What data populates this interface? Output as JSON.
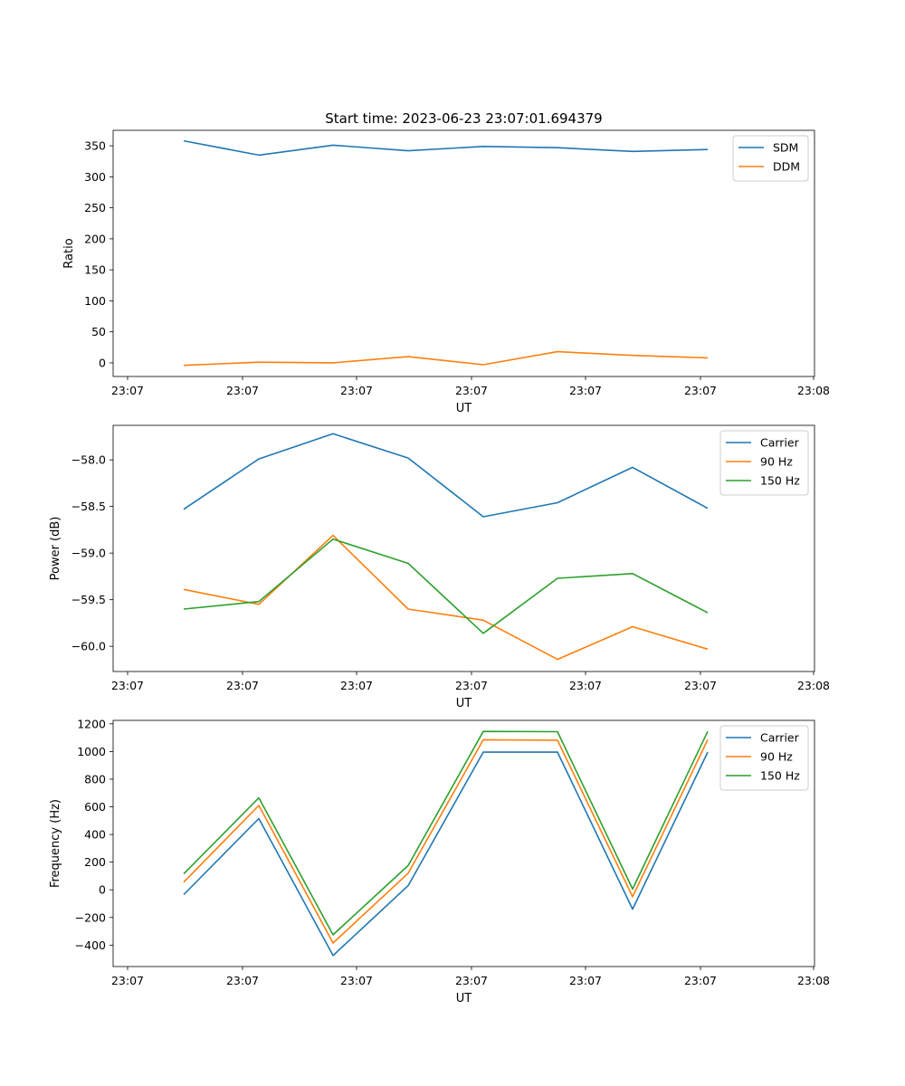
{
  "figure": {
    "title": "Start time: 2023-06-23 23:07:01.694379"
  },
  "chart_data": [
    {
      "type": "line",
      "xlabel": "UT",
      "ylabel": "Ratio",
      "xticks": [
        "23:07",
        "23:07",
        "23:07",
        "23:07",
        "23:07",
        "23:07",
        "23:08"
      ],
      "yticks": [
        0,
        50,
        100,
        150,
        200,
        250,
        300,
        350
      ],
      "ylim": [
        -22,
        375
      ],
      "legend": "top-right",
      "grid": false,
      "x": [
        1,
        2,
        3,
        4,
        5,
        6,
        7,
        8
      ],
      "series": [
        {
          "name": "SDM",
          "color": "#1f77b4",
          "values": [
            358,
            335,
            351,
            342,
            349,
            347,
            341,
            344
          ]
        },
        {
          "name": "DDM",
          "color": "#ff7f0e",
          "values": [
            -4,
            1,
            0,
            10,
            -3,
            18,
            12,
            8
          ]
        }
      ]
    },
    {
      "type": "line",
      "xlabel": "UT",
      "ylabel": "Power (dB)",
      "xticks": [
        "23:07",
        "23:07",
        "23:07",
        "23:07",
        "23:07",
        "23:07",
        "23:08"
      ],
      "yticks": [
        -58.0,
        -58.5,
        -59.0,
        -59.5,
        -60.0
      ],
      "ylim": [
        -60.27,
        -57.63
      ],
      "legend": "top-right",
      "grid": false,
      "x": [
        1,
        2,
        3,
        4,
        5,
        6,
        7,
        8
      ],
      "series": [
        {
          "name": "Carrier",
          "color": "#1f77b4",
          "values": [
            -58.53,
            -57.99,
            -57.72,
            -57.98,
            -58.61,
            -58.46,
            -58.08,
            -58.52
          ]
        },
        {
          "name": "90 Hz",
          "color": "#ff7f0e",
          "values": [
            -59.39,
            -59.55,
            -58.81,
            -59.6,
            -59.72,
            -60.14,
            -59.79,
            -60.03
          ]
        },
        {
          "name": "150 Hz",
          "color": "#2ca02c",
          "values": [
            -59.6,
            -59.52,
            -58.85,
            -59.11,
            -59.86,
            -59.27,
            -59.22,
            -59.64
          ]
        }
      ]
    },
    {
      "type": "line",
      "xlabel": "UT",
      "ylabel": "Frequency (Hz)",
      "xticks": [
        "23:07",
        "23:07",
        "23:07",
        "23:07",
        "23:07",
        "23:07",
        "23:08"
      ],
      "yticks": [
        -400,
        -200,
        0,
        200,
        400,
        600,
        800,
        1000,
        1200
      ],
      "ylim": [
        -555,
        1225
      ],
      "legend": "top-right",
      "grid": false,
      "x": [
        1,
        2,
        3,
        4,
        5,
        6,
        7,
        8
      ],
      "series": [
        {
          "name": "Carrier",
          "color": "#1f77b4",
          "values": [
            -35,
            515,
            -475,
            30,
            995,
            995,
            -140,
            995
          ]
        },
        {
          "name": "90 Hz",
          "color": "#ff7f0e",
          "values": [
            55,
            610,
            -385,
            120,
            1085,
            1082,
            -50,
            1085
          ]
        },
        {
          "name": "150 Hz",
          "color": "#2ca02c",
          "values": [
            115,
            665,
            -325,
            175,
            1145,
            1143,
            5,
            1145
          ]
        }
      ]
    }
  ]
}
